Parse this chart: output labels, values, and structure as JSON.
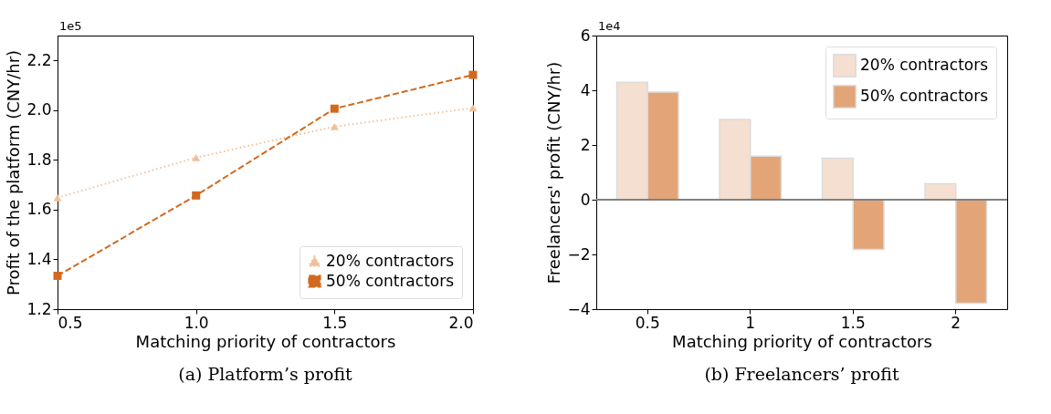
{
  "chart_data": [
    {
      "type": "line",
      "title": "(a) Platform’s profit",
      "xlabel": "Matching priority of contractors",
      "ylabel": "Profit of the platform (CNY/hr)",
      "x": [
        0.5,
        1.0,
        1.5,
        2.0
      ],
      "series": [
        {
          "name": "20% contractors",
          "color": "#f0c09c",
          "marker": "triangle",
          "line_style": "dotted",
          "values": [
            1.648,
            1.809,
            1.934,
            2.009
          ]
        },
        {
          "name": "50% contractors",
          "color": "#d2691e",
          "marker": "square",
          "line_style": "dashed",
          "values": [
            1.334,
            1.657,
            2.006,
            2.142
          ]
        }
      ],
      "xlim": [
        0.5,
        2.0
      ],
      "xticks": [
        {
          "value": 0.5,
          "label": "0.5"
        },
        {
          "value": 1.0,
          "label": "1.0"
        },
        {
          "value": 1.5,
          "label": "1.5"
        },
        {
          "value": 2.0,
          "label": "2.0"
        }
      ],
      "ylim": [
        1.2,
        2.3
      ],
      "yticks": [
        1.2,
        1.4,
        1.6,
        1.8,
        {
          "value": 2.0,
          "label": "2.0"
        },
        2.2
      ],
      "annotations": [
        "1e5"
      ],
      "grid": false,
      "legend": "bottom right"
    },
    {
      "type": "bar",
      "title": "(b) Freelancers’ profit",
      "xlabel": "Matching priority of contractors",
      "ylabel": "Freelancers' profit (CNY/hr)",
      "categories": [
        "0.5",
        "1",
        "1.5",
        "2"
      ],
      "series": [
        {
          "name": "20% contractors",
          "color": "#f5dfd0",
          "values": [
            4.29,
            2.93,
            1.52,
            0.58
          ]
        },
        {
          "name": "50% contractors",
          "color": "#e3a577",
          "values": [
            3.93,
            1.59,
            -1.82,
            -3.78
          ]
        }
      ],
      "ylim": [
        -4,
        6
      ],
      "yticks": [
        {
          "value": -4,
          "label": "−4"
        },
        {
          "value": -2,
          "label": "−2"
        },
        0,
        2,
        4,
        6
      ],
      "ref_lines": [
        {
          "axis": "y",
          "value": 0,
          "color": "#808080"
        }
      ],
      "annotations": [
        "1e4"
      ],
      "grid": false,
      "legend": "top right"
    }
  ]
}
